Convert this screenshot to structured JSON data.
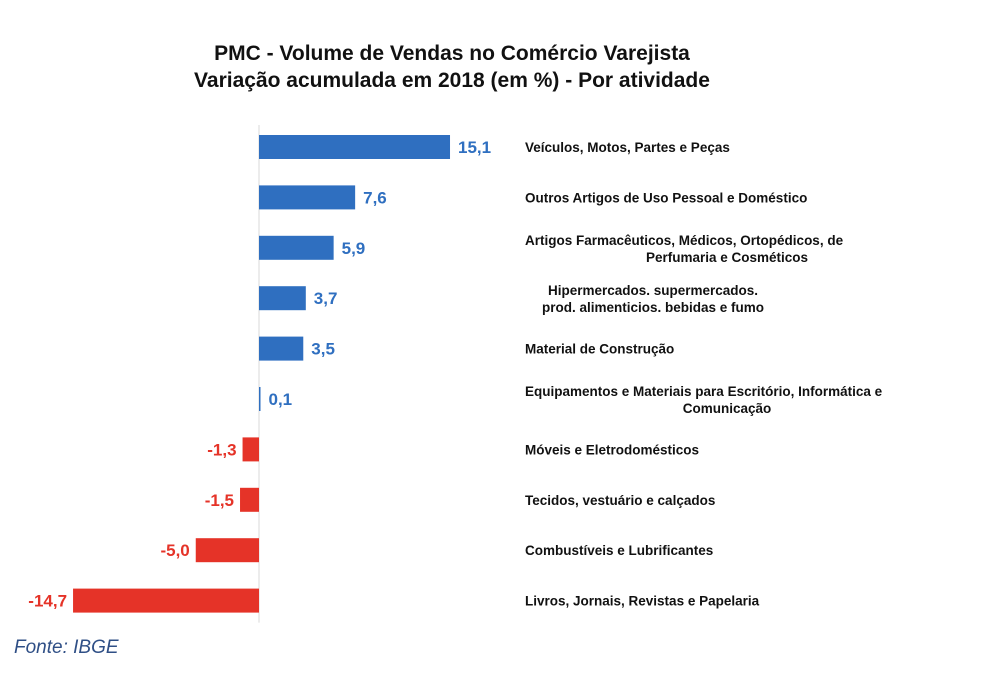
{
  "chart_data": {
    "type": "bar",
    "orientation": "horizontal",
    "title_lines": [
      "PMC - Volume de Vendas no Comércio Varejista",
      "Variação acumulada em 2018 (em %) - Por atividade"
    ],
    "categories": [
      [
        "Veículos, Motos, Partes e Peças"
      ],
      [
        "Outros Artigos de Uso Pessoal e Doméstico"
      ],
      [
        "Artigos Farmacêuticos, Médicos, Ortopédicos, de",
        "Perfumaria e Cosméticos"
      ],
      [
        "Hipermercados. supermercados.",
        "prod. alimenticios. bebidas e fumo"
      ],
      [
        "Material de Construção"
      ],
      [
        "Equipamentos e Materiais para Escritório, Informática e",
        "Comunicação"
      ],
      [
        "Móveis e Eletrodomésticos"
      ],
      [
        "Tecidos, vestuário e calçados"
      ],
      [
        "Combustíveis e Lubrificantes"
      ],
      [
        "Livros, Jornais, Revistas e Papelaria"
      ]
    ],
    "values": [
      15.1,
      7.6,
      5.9,
      3.7,
      3.5,
      0.1,
      -1.3,
      -1.5,
      -5.0,
      -14.7
    ],
    "value_labels": [
      "15,1",
      "7,6",
      "5,9",
      "3,7",
      "3,5",
      "0,1",
      "-1,3",
      "-1,5",
      "-5,0",
      "-14,7"
    ],
    "colors": {
      "positive": "#2f6fc0",
      "negative": "#e53328"
    },
    "xlim": [
      -14.7,
      15.1
    ],
    "grid": false,
    "legend": "none"
  },
  "source": "Fonte: IBGE"
}
